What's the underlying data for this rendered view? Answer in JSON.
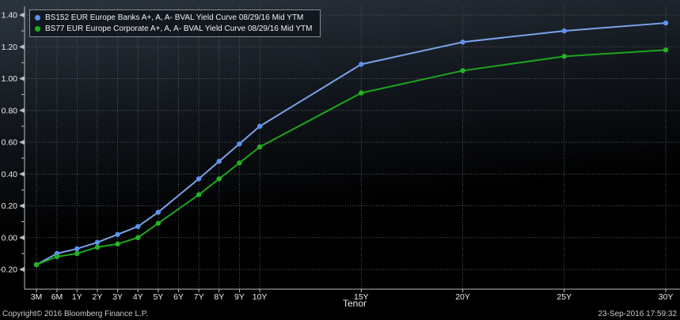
{
  "legend": {
    "items": [
      {
        "label": "BS152 EUR Europe Banks A+, A, A- BVAL Yield Curve 08/29/16 Mid YTM",
        "color": "#5b93f0"
      },
      {
        "label": "BS77 EUR Europe Corporate A+, A, A- BVAL Yield Curve 08/29/16 Mid YTM",
        "color": "#1eb31e"
      }
    ]
  },
  "footer": {
    "copyright": "Copyright© 2016 Bloomberg Finance L.P.",
    "datetime": "23-Sep-2016 17:59:32"
  },
  "chart_data": {
    "type": "line",
    "title": "",
    "xlabel": "Tenor",
    "ylabel": "",
    "ylim": [
      -0.2,
      1.4
    ],
    "grid": "dotted",
    "legend_position": "top-left",
    "y_ticks": [
      -0.2,
      0.0,
      0.2,
      0.4,
      0.6,
      0.8,
      1.0,
      1.2,
      1.4
    ],
    "x_ticks": [
      "3M",
      "6M",
      "1Y",
      "2Y",
      "3Y",
      "4Y",
      "5Y",
      "6Y",
      "7Y",
      "8Y",
      "9Y",
      "10Y",
      "15Y",
      "20Y",
      "25Y",
      "30Y"
    ],
    "series": [
      {
        "name": "BS152 EUR Europe Banks A+, A, A- BVAL Yield Curve 08/29/16 Mid YTM",
        "short_name": "banks",
        "line_color": "#7ba3e8",
        "marker_color": "#5b93f0",
        "tenors": [
          "3M",
          "6M",
          "1Y",
          "2Y",
          "3Y",
          "4Y",
          "5Y",
          "7Y",
          "8Y",
          "9Y",
          "10Y",
          "15Y",
          "20Y",
          "25Y",
          "30Y"
        ],
        "values": [
          -0.17,
          -0.1,
          -0.07,
          -0.03,
          0.02,
          0.07,
          0.16,
          0.37,
          0.48,
          0.59,
          0.7,
          1.09,
          1.23,
          1.3,
          1.35
        ]
      },
      {
        "name": "BS77 EUR Europe Corporate A+, A, A- BVAL Yield Curve 08/29/16 Mid YTM",
        "short_name": "corporate",
        "line_color": "#1da51d",
        "marker_color": "#25b325",
        "tenors": [
          "3M",
          "6M",
          "1Y",
          "2Y",
          "3Y",
          "4Y",
          "5Y",
          "7Y",
          "8Y",
          "9Y",
          "10Y",
          "15Y",
          "20Y",
          "25Y",
          "30Y"
        ],
        "values": [
          -0.17,
          -0.12,
          -0.1,
          -0.06,
          -0.04,
          0.0,
          0.09,
          0.27,
          0.37,
          0.47,
          0.57,
          0.91,
          1.05,
          1.14,
          1.18
        ]
      }
    ]
  },
  "colors": {
    "grid": "#565c61",
    "axis": "#b9bec2",
    "tick_text": "#ebebeb",
    "bg_top": "#2c353f",
    "bg_mid": "#11161c",
    "bg_bottom": "#000000"
  }
}
